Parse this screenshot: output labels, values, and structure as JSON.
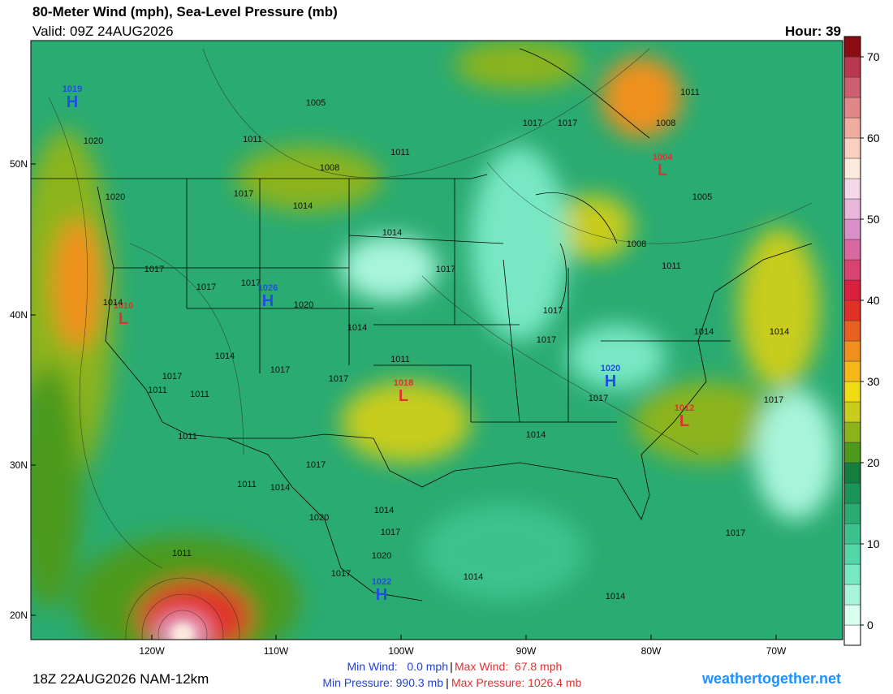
{
  "header": {
    "title": "80-Meter Wind (mph), Sea-Level Pressure (mb)",
    "valid": "Valid: 09Z 24AUG2026",
    "hour": "Hour: 39"
  },
  "map": {
    "lat_labels": [
      "50N",
      "40N",
      "30N",
      "20N"
    ],
    "lon_labels": [
      "120W",
      "110W",
      "100W",
      "90W",
      "80W",
      "70W"
    ],
    "pressure_centers": [
      {
        "letter": "H",
        "value": "1019",
        "color": "#1f4fe0"
      },
      {
        "letter": "H",
        "value": "1026",
        "color": "#1f4fe0"
      },
      {
        "letter": "H",
        "value": "1020",
        "color": "#1f4fe0"
      },
      {
        "letter": "H",
        "value": "1022",
        "color": "#1f4fe0"
      },
      {
        "letter": "L",
        "value": "1010",
        "color": "#e03030"
      },
      {
        "letter": "L",
        "value": "1004",
        "color": "#e03030"
      },
      {
        "letter": "L",
        "value": "1018",
        "color": "#e03030"
      },
      {
        "letter": "L",
        "value": "1012",
        "color": "#e03030"
      }
    ],
    "isobar_labels": [
      "1005",
      "1011",
      "1020",
      "1008",
      "1011",
      "1017",
      "1017",
      "1011",
      "1008",
      "1005",
      "1017",
      "1014",
      "1020",
      "1014",
      "1017",
      "1017",
      "1017",
      "1020",
      "1014",
      "1014",
      "1017",
      "1008",
      "1011",
      "1017",
      "1017",
      "1014",
      "1011",
      "1017",
      "1017",
      "1017",
      "1011",
      "1011",
      "1014",
      "1014",
      "1017",
      "1017",
      "1011",
      "1014",
      "1017",
      "1011",
      "1014",
      "1020",
      "1014",
      "1017",
      "1020",
      "1017",
      "1014",
      "1014",
      "1017",
      "1011"
    ]
  },
  "colorbar": {
    "range": [
      -2.5,
      72.5
    ],
    "ticks": [
      0,
      10,
      20,
      30,
      40,
      50,
      60,
      70
    ],
    "colors": [
      "#ffffff",
      "#d8fff0",
      "#a8f5dc",
      "#78e8c4",
      "#55d6a8",
      "#3cc28e",
      "#2aab72",
      "#1c9458",
      "#147e40",
      "#4c9a1c",
      "#8cb41a",
      "#c8cc1c",
      "#f0dc14",
      "#f4b818",
      "#f0901c",
      "#e86020",
      "#e03028",
      "#d82040",
      "#d84470",
      "#d868a0",
      "#d890c8",
      "#e8b8dc",
      "#f4d8e8",
      "#fceadc",
      "#f8d0c0",
      "#f0aca0",
      "#e08888",
      "#cc6070",
      "#b83850",
      "#8c0c14"
    ]
  },
  "footer": {
    "run": "18Z 22AUG2026 NAM-12km",
    "min_wind": "Min Wind:   0.0 mph",
    "max_wind": "Max Wind:  67.8 mph",
    "min_pressure": "Min Pressure: 990.3 mb",
    "max_pressure": "Max Pressure: 1026.4 mb",
    "separator": "|",
    "site": "weathertogether.net"
  }
}
